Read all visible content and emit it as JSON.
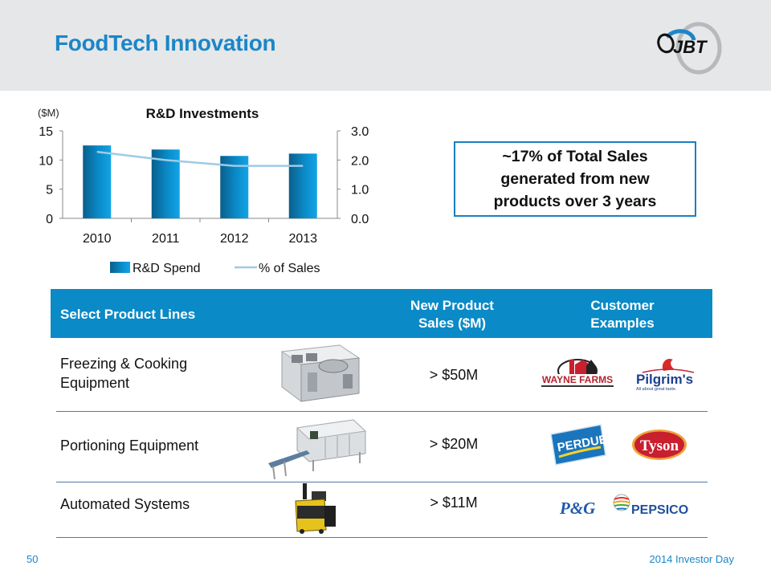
{
  "slide": {
    "title": "FoodTech Innovation",
    "logo_text": "JBT",
    "accent_color": "#1b86c7",
    "header_fill": "#0a8ac7"
  },
  "chart_data": {
    "type": "bar",
    "title": "R&D Investments",
    "ylabel": "($M)",
    "categories": [
      "2010",
      "2011",
      "2012",
      "2013"
    ],
    "ylim": [
      0,
      15
    ],
    "y_ticks": [
      "0",
      "5",
      "10",
      "15"
    ],
    "y2lim": [
      0,
      3.0
    ],
    "y2_ticks": [
      "0.0%",
      "1.0%",
      "2.0%",
      "3.0%"
    ],
    "series": [
      {
        "name": "R&D Spend",
        "kind": "bar",
        "axis": "left",
        "values": [
          12.5,
          11.8,
          10.7,
          11.1
        ],
        "color": "#0a8ac7"
      },
      {
        "name": "% of Sales",
        "kind": "line",
        "axis": "right",
        "values": [
          2.28,
          2.0,
          1.8,
          1.8
        ],
        "color": "#9dcbe6"
      }
    ],
    "legend_position": "bottom"
  },
  "callout": {
    "text": "~17%  of Total Sales\ngenerated from new\nproducts over 3 years"
  },
  "table": {
    "headers": [
      "Select Product Lines",
      "New Product\nSales ($M)",
      "Customer\nExamples"
    ],
    "rows": [
      {
        "product": "Freezing  & Cooking\nEquipment",
        "sales": "> $50M",
        "customers": [
          "WAYNE FARMS",
          "Pilgrim's"
        ],
        "customer_taglines": [
          "",
          "All about great taste."
        ],
        "image": "spiral-freezer"
      },
      {
        "product": "Portioning  Equipment",
        "sales": "> $20M",
        "customers": [
          "PERDUE",
          "Tyson"
        ],
        "image": "portioning-machine"
      },
      {
        "product": "Automated  Systems",
        "sales": "> $11M",
        "customers": [
          "P&G",
          "PEPSICO"
        ],
        "image": "automated-guided-vehicle"
      }
    ]
  },
  "footer": {
    "page_number": "50",
    "event": "2014 Investor Day"
  }
}
